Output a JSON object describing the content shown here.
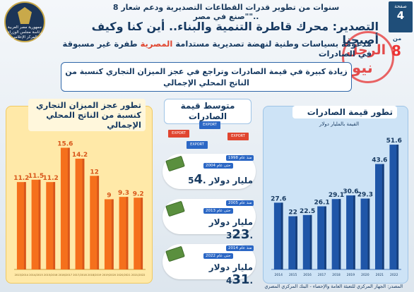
{
  "header": {
    "top_line": "8 سنوات من تطوير قدرات القطاعات التصديرية ودعم شعار \"صنع في مصر\"..",
    "title": "التصدير: محرك قاطرة التنمية والبناء.. أين كنا وكيف أصبحنا",
    "subtitle_pre": "طفرة غير مسبوقة في الصادرات",
    "subtitle_hl": "المصرية",
    "subtitle_post": "مدعومة بسياسات وطنية لنهضة تصديرية مستدامة",
    "banner": "زيادة كبيرة في قيمة الصادرات وتراجع في عجز الميزان التجاري كنسبة من الناتج المحلي الإجمالي",
    "page_label": "صفحة",
    "page_number": "4",
    "page_of": "من",
    "page_total": "8",
    "watermark_1": "الرجل",
    "watermark_2": "نيوز"
  },
  "logo": {
    "line1": "جمهورية مصر العربية",
    "line2": "رئاسة مجلس الوزراء",
    "line3": "المركز الإعلامي"
  },
  "left_panel": {
    "title": "تطور عجز الميزان التجاري كنسبة من الناتج المحلي الإجمالي"
  },
  "middle": {
    "title": "متوسط قيمة الصادرات",
    "export_label": "EXPORT",
    "cards": [
      {
        "since": "منذ عام 1998",
        "until": "حتى عام 2004",
        "value_big": "4",
        "value_small": ".5",
        "unit": "مليار دولار"
      },
      {
        "since": "منذ عام 2005",
        "until": "حتى عام 2013",
        "value_big": "23",
        "value_small": ".3",
        "unit": "مليار دولار"
      },
      {
        "since": "منذ عام 2014",
        "until": "حتى عام 2022",
        "value_big": "31",
        "value_small": ".4",
        "unit": "مليار دولار"
      }
    ]
  },
  "right_panel": {
    "title": "تطور قيمة الصادرات",
    "unit": "القيمة بالمليار دولار"
  },
  "footer": "المصدر: الجهاز المركزي للتعبئة العامة والإحصاء - البنك المركزي المصري",
  "colors": {
    "navy": "#173a61",
    "orange": "#f5701c",
    "orange_dark": "#d8561a",
    "blue": "#1f56a8",
    "red": "#e0452f"
  },
  "chart_data": [
    {
      "type": "bar",
      "title": "تطور عجز الميزان التجاري كنسبة من الناتج المحلي الإجمالي",
      "categories": [
        "2013/2014",
        "2014/2015",
        "2015/2016",
        "2016/2017",
        "2017/2018",
        "2018/2019",
        "2019/2020",
        "2020/2021",
        "2021/2022"
      ],
      "values": [
        11.2,
        11.5,
        11.2,
        15.6,
        14.2,
        12.0,
        9.0,
        9.3,
        9.2
      ],
      "labels": [
        "11.2",
        "11.5",
        "11.2",
        "15.6",
        "14.2",
        "12",
        "9",
        "9.3",
        "9.2"
      ],
      "ylim": [
        0,
        17
      ]
    },
    {
      "type": "bar",
      "title": "تطور قيمة الصادرات",
      "ylabel": "القيمة بالمليار دولار",
      "categories": [
        "2014",
        "2015",
        "2016",
        "2017",
        "2018",
        "2019",
        "2020",
        "2021",
        "2022"
      ],
      "values": [
        27.6,
        22.0,
        22.5,
        26.1,
        29.1,
        30.6,
        29.3,
        43.6,
        51.6
      ],
      "labels": [
        "27.6",
        "22",
        "22.5",
        "26.1",
        "29.1",
        "30.6",
        "29.3",
        "43.6",
        "51.6"
      ],
      "ylim": [
        0,
        56
      ]
    }
  ]
}
